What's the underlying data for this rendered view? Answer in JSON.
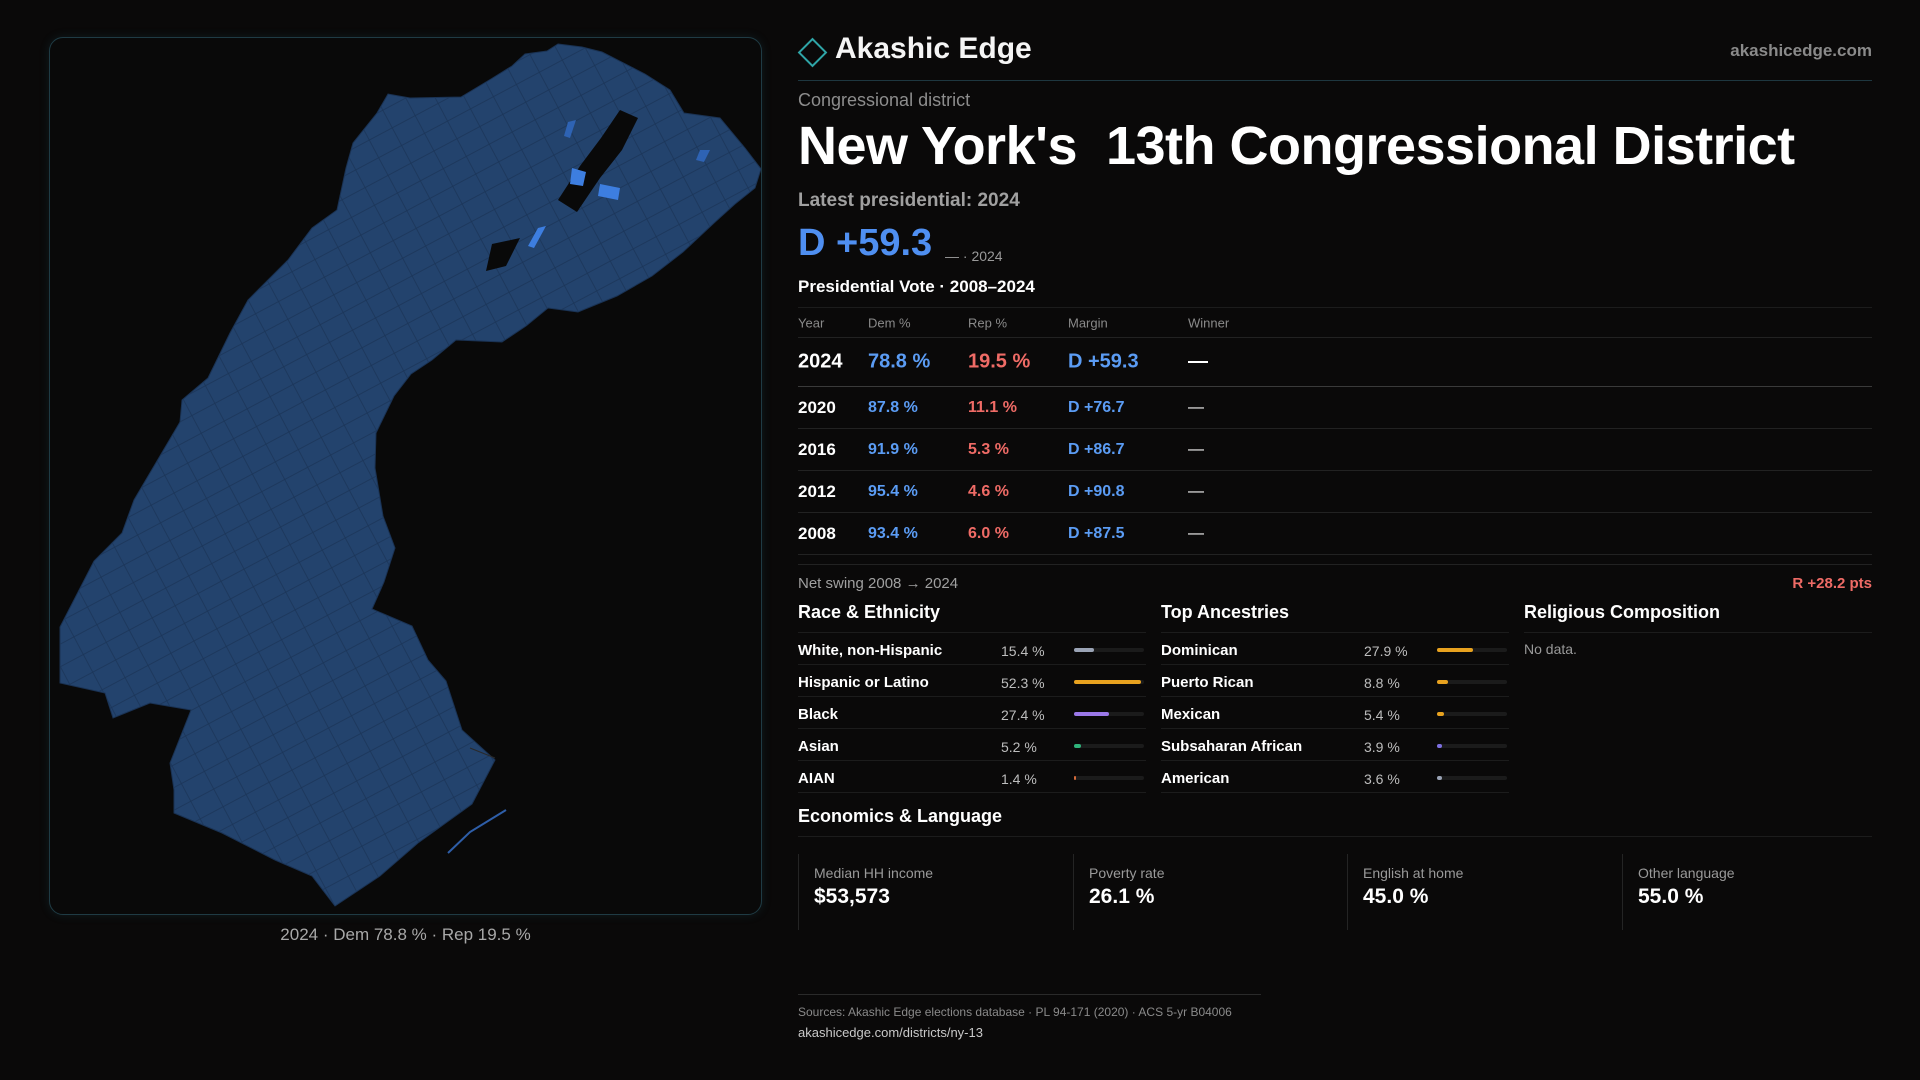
{
  "colors": {
    "accent": "#2fa5a7",
    "democrat": "#5b9cf4",
    "republican": "#ef6b66",
    "background": "#0a0909",
    "map_fill": "#23436d"
  },
  "brand": {
    "name": "Akashic Edge",
    "url": "akashicedge.com",
    "icon": "diamond-logo-icon"
  },
  "header": {
    "kicker": "Congressional district",
    "title": "New York's  13th Congressional District",
    "latest_label": "Latest presidential: 2024",
    "latest_margin": "D +59.3",
    "latest_margin_sub": "— · 2024"
  },
  "map": {
    "caption": "2024 · Dem 78.8 % · Rep 19.5 %"
  },
  "vote_table": {
    "heading": "Presidential Vote · 2008–2024",
    "columns": [
      "Year",
      "Dem %",
      "Rep %",
      "Margin",
      "Winner"
    ],
    "rows": [
      {
        "year": "2024",
        "dem": "78.8 %",
        "rep": "19.5 %",
        "margin": "D +59.3",
        "winner": "—"
      },
      {
        "year": "2020",
        "dem": "87.8 %",
        "rep": "11.1 %",
        "margin": "D +76.7",
        "winner": "—"
      },
      {
        "year": "2016",
        "dem": "91.9 %",
        "rep": "5.3 %",
        "margin": "D +86.7",
        "winner": "—"
      },
      {
        "year": "2012",
        "dem": "95.4 %",
        "rep": "4.6 %",
        "margin": "D +90.8",
        "winner": "—"
      },
      {
        "year": "2008",
        "dem": "93.4 %",
        "rep": "6.0 %",
        "margin": "D +87.5",
        "winner": "—"
      }
    ]
  },
  "swing": {
    "label": "Net swing 2008 → 2024",
    "value": "R +28.2 pts"
  },
  "race": {
    "heading": "Race & Ethnicity",
    "rows": [
      {
        "label": "White, non-Hispanic",
        "pct": "15.4 %",
        "share": 0.154,
        "color": "#9aa3b5"
      },
      {
        "label": "Hispanic or Latino",
        "pct": "52.3 %",
        "share": 0.523,
        "color": "#e8a21f"
      },
      {
        "label": "Black",
        "pct": "27.4 %",
        "share": 0.274,
        "color": "#9b78e8"
      },
      {
        "label": "Asian",
        "pct": "5.2 %",
        "share": 0.052,
        "color": "#2fb37a"
      },
      {
        "label": "AIAN",
        "pct": "1.4 %",
        "share": 0.014,
        "color": "#d56b3a"
      }
    ]
  },
  "ancestries": {
    "heading": "Top Ancestries",
    "rows": [
      {
        "label": "Dominican",
        "pct": "27.9 %",
        "share": 0.279,
        "color": "#e8a21f"
      },
      {
        "label": "Puerto Rican",
        "pct": "8.8 %",
        "share": 0.088,
        "color": "#e8a21f"
      },
      {
        "label": "Mexican",
        "pct": "5.4 %",
        "share": 0.054,
        "color": "#e8a21f"
      },
      {
        "label": "Subsaharan African",
        "pct": "3.9 %",
        "share": 0.039,
        "color": "#7d6fe0"
      },
      {
        "label": "American",
        "pct": "3.6 %",
        "share": 0.036,
        "color": "#9aa3b5"
      }
    ]
  },
  "religion": {
    "heading": "Religious Composition",
    "empty_text": "No data."
  },
  "economics": {
    "heading": "Economics & Language",
    "cells": [
      {
        "label": "Median HH income",
        "value": "$53,573"
      },
      {
        "label": "Poverty rate",
        "value": "26.1 %"
      },
      {
        "label": "English at home",
        "value": "45.0 %"
      },
      {
        "label": "Other language",
        "value": "55.0 %"
      }
    ]
  },
  "sources": {
    "line1": "Sources: Akashic Edge elections database · PL 94-171 (2020) · ACS 5-yr B04006",
    "line2": "akashicedge.com/districts/ny-13"
  }
}
